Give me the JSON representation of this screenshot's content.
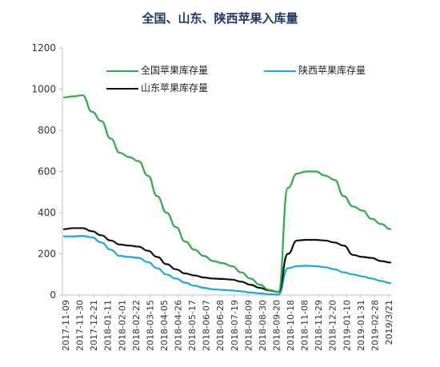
{
  "chart_data": {
    "type": "line",
    "title": "全国、山东、陕西苹果入库量",
    "xlabel": "",
    "ylabel": "",
    "ylim": [
      0,
      1200
    ],
    "yticks": [
      0,
      200,
      400,
      600,
      800,
      1000,
      1200
    ],
    "grid": false,
    "legend_position": "top",
    "x_ticks": [
      "2017-11-09",
      "2017-11-30",
      "2017-12-21",
      "2018-01-11",
      "2018-02-01",
      "2018-02-22",
      "2018-03-15",
      "2018-04-05",
      "2018-04-26",
      "2018-05-17",
      "2018-06-07",
      "2018-06-28",
      "2018-07-19",
      "2018-08-09",
      "2018-08-30",
      "2018-09-20",
      "2018-10-18",
      "2018-11-08",
      "2018-11-29",
      "2018-12-20",
      "2019-01-10",
      "2019-01-31",
      "2019-02-28",
      "2019/3/21"
    ],
    "series": [
      {
        "name": "全国苹果库存量",
        "color": "#2eaa4a",
        "values": [
          960,
          965,
          970,
          890,
          845,
          760,
          690,
          670,
          650,
          580,
          480,
          400,
          330,
          260,
          220,
          190,
          165,
          155,
          140,
          110,
          80,
          50,
          25,
          15,
          520,
          590,
          600,
          600,
          580,
          560,
          480,
          430,
          410,
          370,
          345,
          320
        ]
      },
      {
        "name": "陕西苹果库存量",
        "color": "#1ea6e0",
        "values": [
          285,
          285,
          287,
          280,
          255,
          220,
          190,
          185,
          180,
          160,
          130,
          100,
          80,
          60,
          45,
          35,
          28,
          25,
          22,
          18,
          12,
          8,
          4,
          2,
          130,
          140,
          142,
          140,
          135,
          125,
          110,
          100,
          90,
          80,
          68,
          58
        ]
      },
      {
        "name": "山东苹果库存量",
        "color": "#111111",
        "values": [
          320,
          325,
          325,
          310,
          290,
          265,
          245,
          240,
          235,
          215,
          185,
          150,
          125,
          105,
          95,
          85,
          80,
          78,
          75,
          65,
          50,
          35,
          22,
          15,
          200,
          265,
          268,
          268,
          265,
          255,
          240,
          195,
          185,
          180,
          165,
          158
        ]
      }
    ]
  }
}
